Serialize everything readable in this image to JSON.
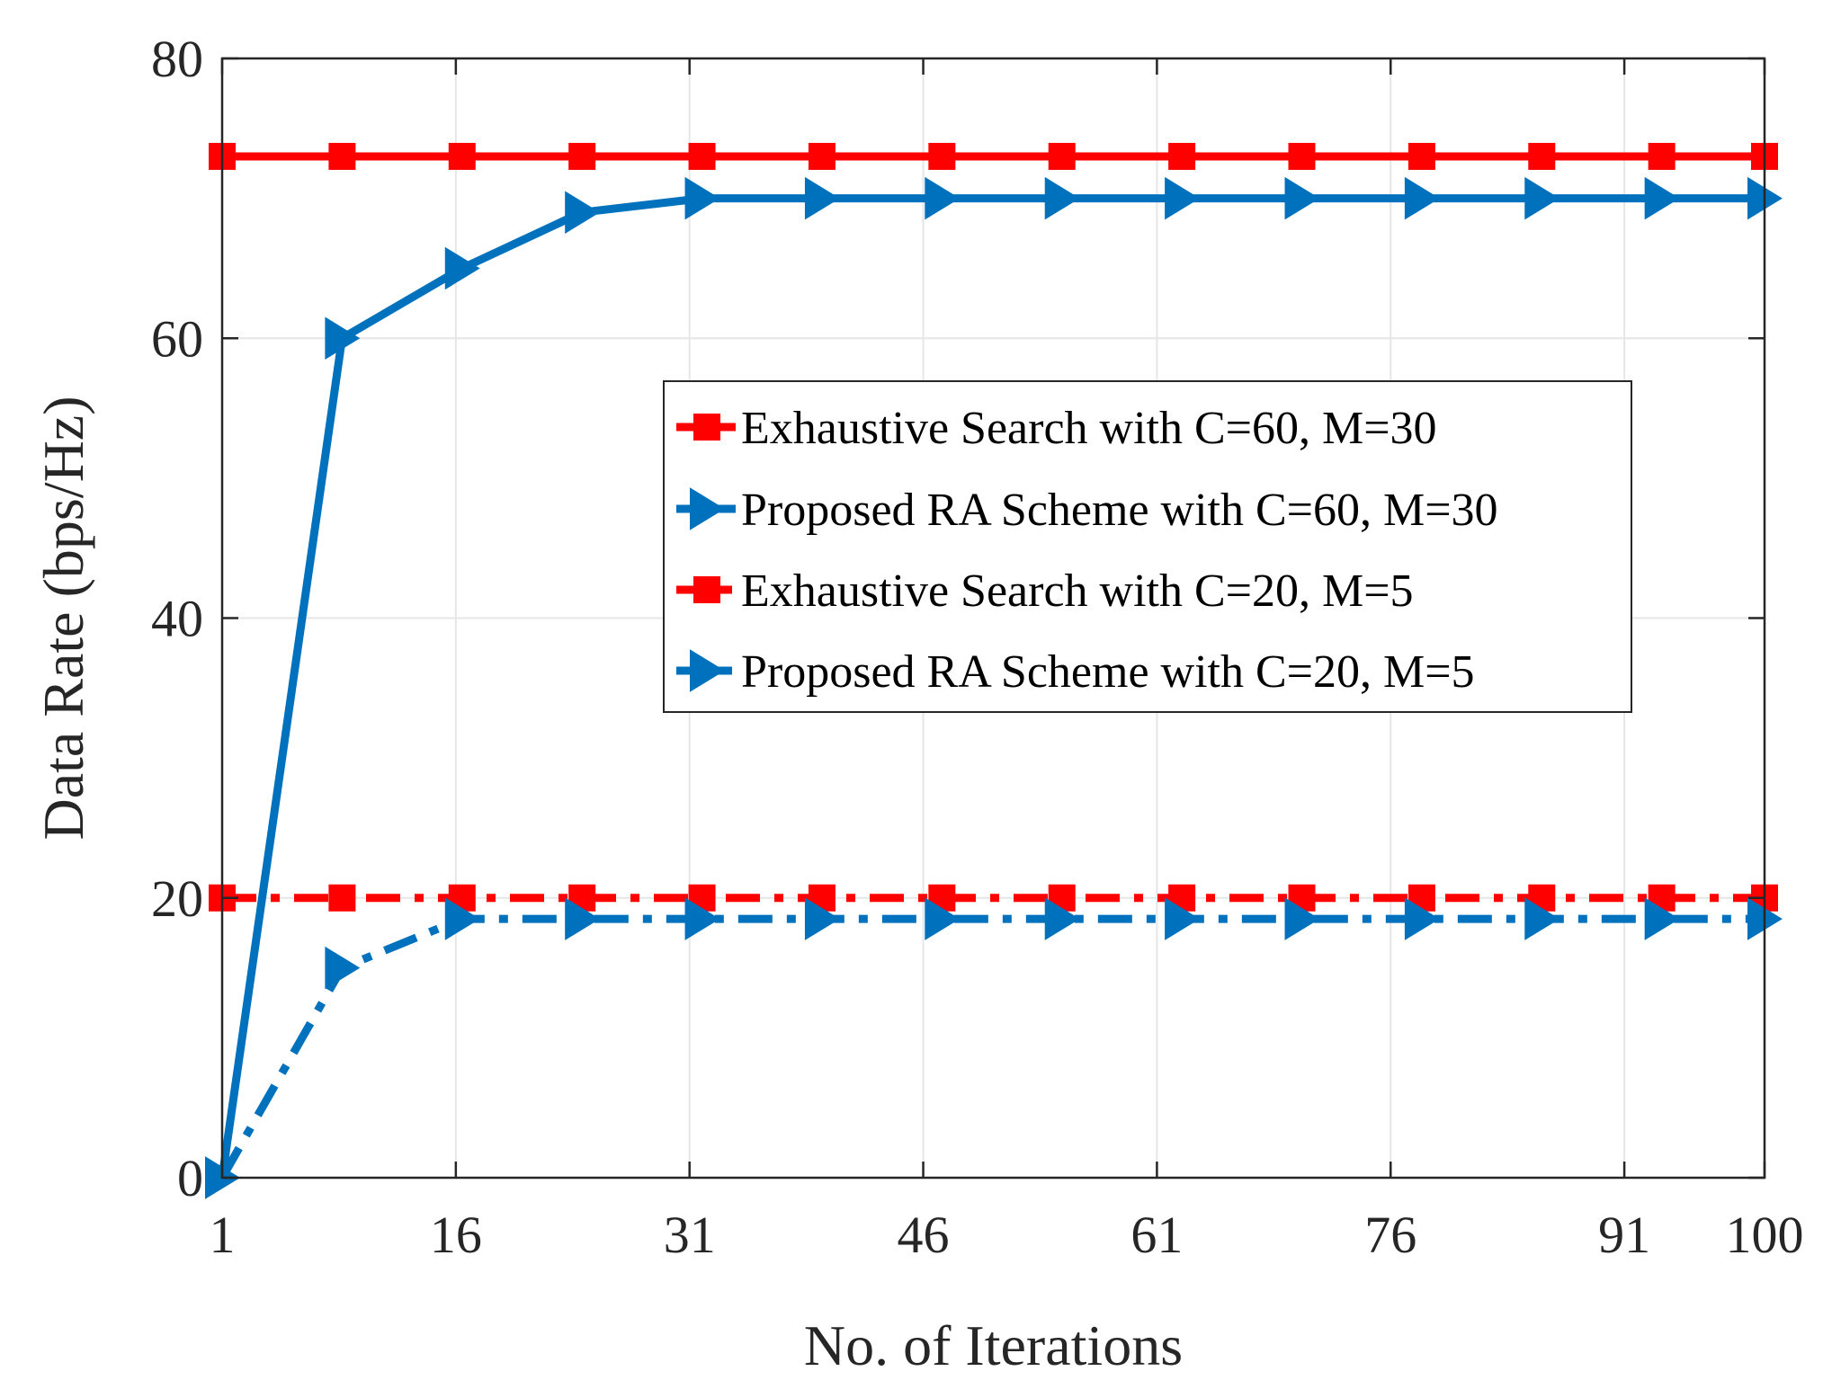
{
  "colors": {
    "exhaustive": "#ff0000",
    "proposed": "#0072bd",
    "grid": "#e6e6e6",
    "axis": "#262626"
  },
  "chart_data": {
    "type": "line",
    "xlabel": "No. of Iterations",
    "ylabel": "Data Rate (bps/Hz)",
    "xlim": [
      1,
      100
    ],
    "ylim": [
      0,
      80
    ],
    "xticks": [
      1,
      16,
      31,
      46,
      61,
      76,
      91,
      100
    ],
    "yticks": [
      0,
      20,
      40,
      60,
      80
    ],
    "grid": true,
    "legend_position": "center-right",
    "series": [
      {
        "name": "Exhaustive Search with C=60, M=30",
        "color": "#ff0000",
        "line_style": "solid",
        "marker": "square",
        "x": [
          1,
          8.7,
          16.4,
          24.1,
          31.8,
          39.5,
          47.2,
          54.9,
          62.6,
          70.3,
          78,
          85.7,
          93.4,
          100
        ],
        "y": [
          73,
          73,
          73,
          73,
          73,
          73,
          73,
          73,
          73,
          73,
          73,
          73,
          73,
          73
        ]
      },
      {
        "name": "Proposed RA Scheme with C=60, M=30",
        "color": "#0072bd",
        "line_style": "solid",
        "marker": "triangle-right",
        "x": [
          1,
          8.7,
          16.4,
          24.1,
          31.8,
          39.5,
          47.2,
          54.9,
          62.6,
          70.3,
          78,
          85.7,
          93.4,
          100
        ],
        "y": [
          0,
          60,
          65,
          69,
          70,
          70,
          70,
          70,
          70,
          70,
          70,
          70,
          70,
          70
        ]
      },
      {
        "name": "Exhaustive Search with C=20, M=5",
        "color": "#ff0000",
        "line_style": "dashdot",
        "marker": "square",
        "x": [
          1,
          8.7,
          16.4,
          24.1,
          31.8,
          39.5,
          47.2,
          54.9,
          62.6,
          70.3,
          78,
          85.7,
          93.4,
          100
        ],
        "y": [
          20,
          20,
          20,
          20,
          20,
          20,
          20,
          20,
          20,
          20,
          20,
          20,
          20,
          20
        ]
      },
      {
        "name": "Proposed RA Scheme with C=20, M=5",
        "color": "#0072bd",
        "line_style": "dashdot",
        "marker": "triangle-right",
        "x": [
          1,
          8.7,
          16.4,
          24.1,
          31.8,
          39.5,
          47.2,
          54.9,
          62.6,
          70.3,
          78,
          85.7,
          93.4,
          100
        ],
        "y": [
          0,
          15,
          18.5,
          18.5,
          18.5,
          18.5,
          18.5,
          18.5,
          18.5,
          18.5,
          18.5,
          18.5,
          18.5,
          18.5
        ]
      }
    ]
  }
}
